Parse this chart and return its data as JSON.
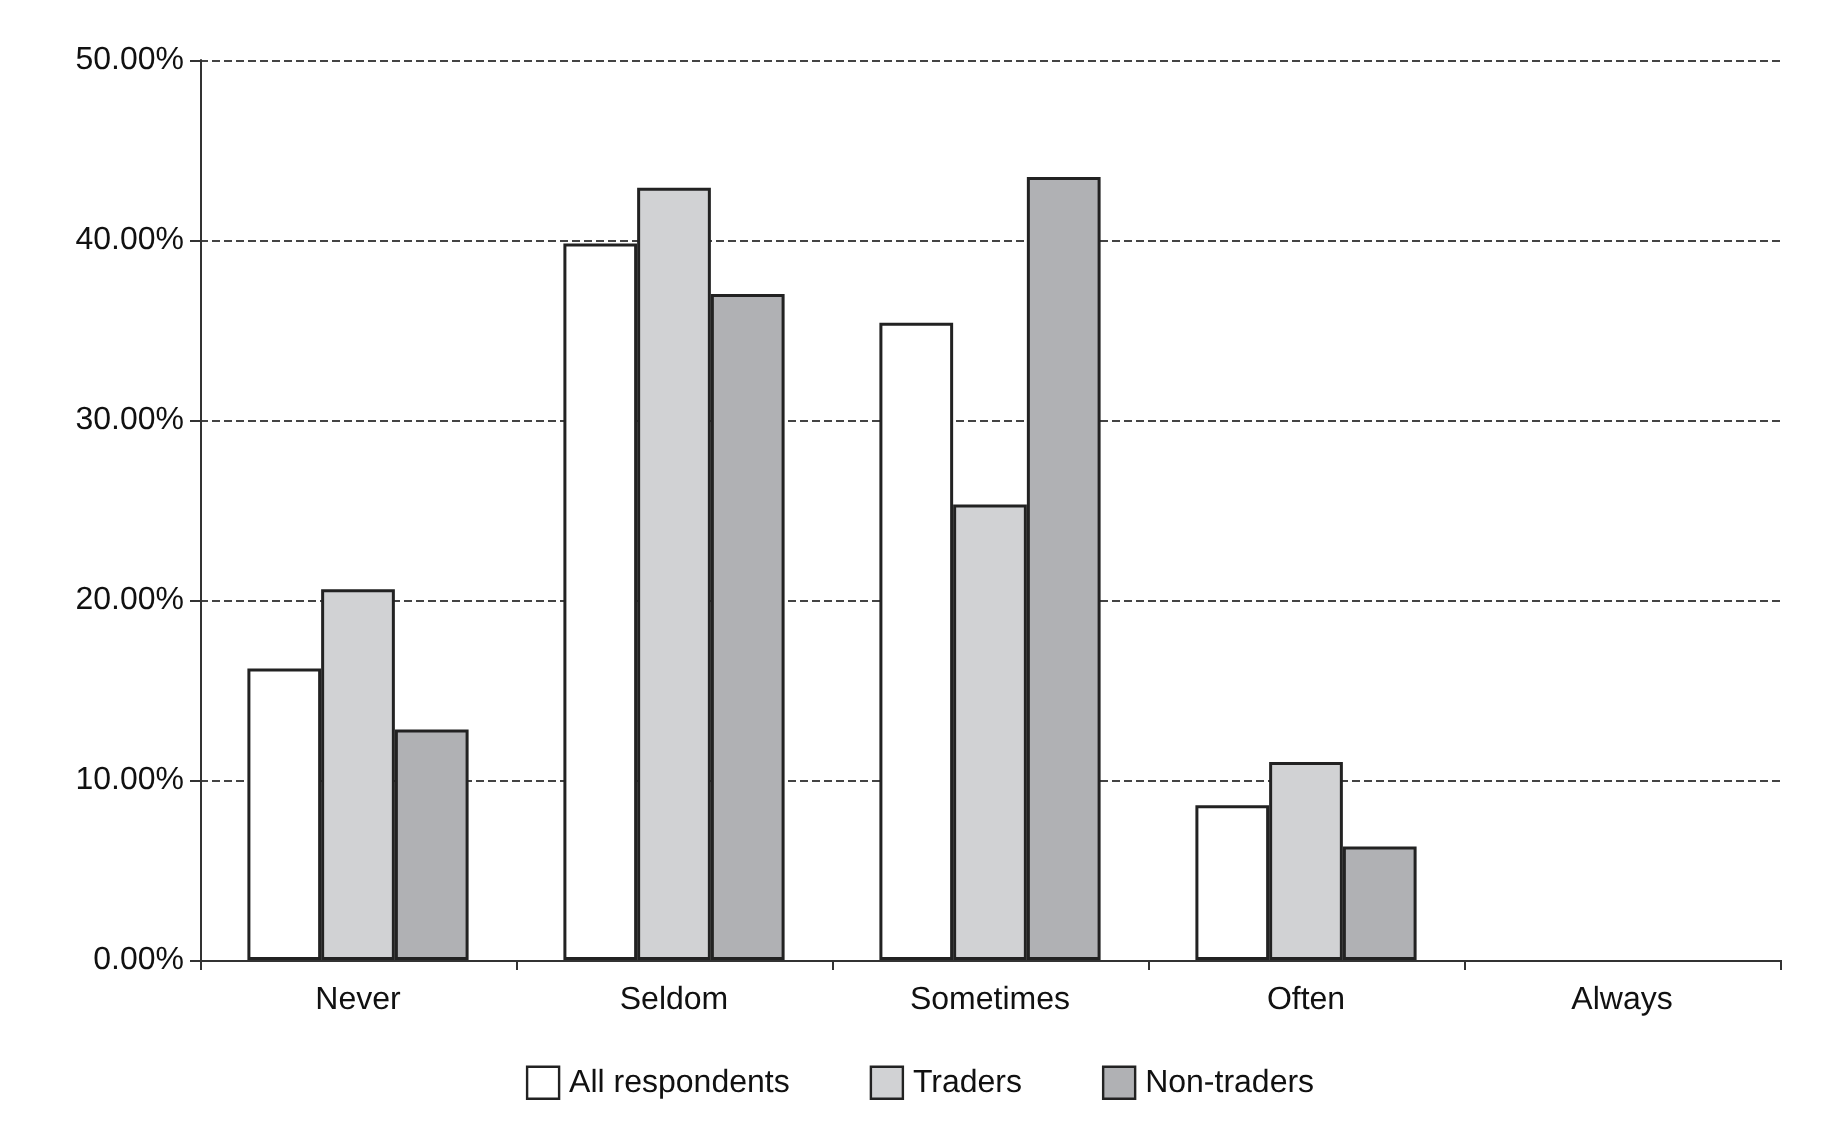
{
  "chart_data": {
    "type": "bar",
    "categories": [
      "Never",
      "Seldom",
      "Sometimes",
      "Often",
      "Always"
    ],
    "series": [
      {
        "name": "All respondents",
        "color": "#ffffff",
        "values": [
          16.2,
          39.8,
          35.4,
          8.6,
          0
        ]
      },
      {
        "name": "Traders",
        "color": "#d1d2d4",
        "values": [
          20.6,
          42.9,
          25.3,
          11.0,
          0
        ]
      },
      {
        "name": "Non-traders",
        "color": "#b0b1b4",
        "values": [
          12.8,
          37.0,
          43.5,
          6.3,
          0
        ]
      }
    ],
    "ylim": [
      0,
      50
    ],
    "yticks": [
      {
        "value": 0,
        "label": "0.00%"
      },
      {
        "value": 10,
        "label": "10.00%"
      },
      {
        "value": 20,
        "label": "20.00%"
      },
      {
        "value": 30,
        "label": "30.00%"
      },
      {
        "value": 40,
        "label": "40.00%"
      },
      {
        "value": 50,
        "label": "50.00%"
      }
    ],
    "grid": "y",
    "line_style": "dashed",
    "legend": "bottom"
  }
}
